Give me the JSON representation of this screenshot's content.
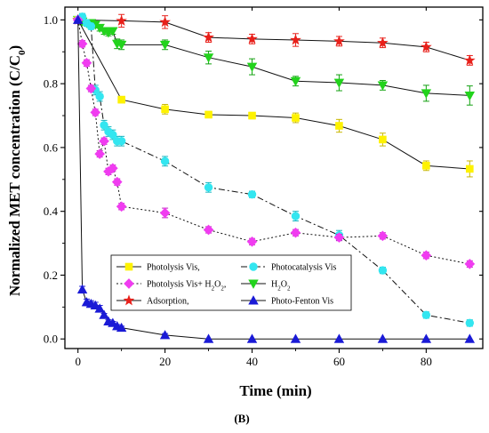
{
  "chart_data": {
    "type": "line",
    "xlabel": "Time (min)",
    "ylabel_parts": {
      "main": "Normalized MET concentration (C/C",
      "sub": "0",
      "end": ")"
    },
    "panel_label": "(B)",
    "xlim": [
      -3,
      93
    ],
    "ylim": [
      -0.03,
      1.04
    ],
    "xticks": [
      0,
      20,
      40,
      60,
      80
    ],
    "yticks": [
      0.0,
      0.2,
      0.4,
      0.6,
      0.8,
      1.0
    ],
    "ytick_labels": [
      "0.0",
      "0.2",
      "0.4",
      "0.6",
      "0.8",
      "1.0"
    ],
    "grid": false,
    "legend_position": "lower-center",
    "series": [
      {
        "name": "Adsorption,",
        "color": "#e8201a",
        "marker": "star",
        "line": "solid",
        "x": [
          0,
          10,
          20,
          30,
          40,
          50,
          60,
          70,
          80,
          90
        ],
        "y": [
          1.0,
          0.997,
          0.993,
          0.945,
          0.94,
          0.937,
          0.933,
          0.928,
          0.915,
          0.873
        ],
        "err": [
          0,
          0.02,
          0.02,
          0.015,
          0.015,
          0.02,
          0.015,
          0.015,
          0.015,
          0.015
        ]
      },
      {
        "name": "H",
        "name_sub": "2",
        "name_rest": "O",
        "name_sub2": "2",
        "color": "#22d31c",
        "marker": "triangle-down",
        "line": "solid",
        "x": [
          0,
          1,
          2,
          3,
          4,
          5,
          6,
          7,
          8,
          9,
          10,
          20,
          30,
          40,
          50,
          60,
          70,
          80,
          90
        ],
        "y": [
          1.0,
          0.995,
          0.99,
          0.99,
          0.985,
          0.975,
          0.965,
          0.96,
          0.965,
          0.925,
          0.922,
          0.922,
          0.882,
          0.853,
          0.808,
          0.803,
          0.795,
          0.77,
          0.763
        ],
        "err": [
          0,
          0.01,
          0.01,
          0.01,
          0.01,
          0.01,
          0.01,
          0.01,
          0.01,
          0.015,
          0.015,
          0.015,
          0.02,
          0.025,
          0.015,
          0.025,
          0.015,
          0.025,
          0.03
        ]
      },
      {
        "name": "Photolysis Vis,",
        "color": "#fef200",
        "marker": "square",
        "line": "solid",
        "x": [
          0,
          10,
          20,
          30,
          40,
          50,
          60,
          70,
          80,
          90
        ],
        "y": [
          1.0,
          0.75,
          0.72,
          0.703,
          0.7,
          0.693,
          0.668,
          0.625,
          0.543,
          0.533
        ],
        "err": [
          0,
          0.01,
          0.015,
          0.01,
          0.01,
          0.015,
          0.02,
          0.02,
          0.015,
          0.025
        ]
      },
      {
        "name": "Photocatalysis Vis",
        "color": "#33e6f0",
        "marker": "circle",
        "line": "dash-dot",
        "x": [
          0,
          1,
          2,
          3,
          4,
          5,
          6,
          7,
          8,
          9,
          10,
          20,
          30,
          40,
          50,
          60,
          70,
          80,
          90
        ],
        "y": [
          1.0,
          1.01,
          0.99,
          0.98,
          0.78,
          0.76,
          0.67,
          0.65,
          0.64,
          0.62,
          0.62,
          0.557,
          0.475,
          0.453,
          0.385,
          0.325,
          0.215,
          0.075,
          0.05
        ],
        "err": [
          0,
          0.01,
          0.01,
          0.01,
          0.015,
          0.015,
          0.015,
          0.015,
          0.015,
          0.015,
          0.015,
          0.015,
          0.015,
          0.01,
          0.015,
          0.015,
          0.01,
          0.01,
          0.01
        ]
      },
      {
        "name": "Photolysis Vis+ H",
        "name_sub": "2",
        "name_rest": "O",
        "name_sub2": "2",
        "name_end": ",",
        "color": "#f03cf0",
        "marker": "diamond",
        "line": "dotted",
        "x": [
          0,
          1,
          2,
          3,
          4,
          5,
          6,
          7,
          8,
          9,
          10,
          20,
          30,
          40,
          50,
          60,
          70,
          80,
          90
        ],
        "y": [
          1.0,
          0.925,
          0.865,
          0.785,
          0.71,
          0.58,
          0.62,
          0.525,
          0.535,
          0.492,
          0.415,
          0.395,
          0.342,
          0.305,
          0.333,
          0.318,
          0.323,
          0.262,
          0.235
        ],
        "err": [
          0,
          0.01,
          0.01,
          0.01,
          0.01,
          0.01,
          0.01,
          0.01,
          0.01,
          0.01,
          0.01,
          0.015,
          0.01,
          0.01,
          0.01,
          0.01,
          0.01,
          0.01,
          0.01
        ]
      },
      {
        "name": "Photo-Fenton Vis",
        "color": "#1a1ad6",
        "marker": "triangle-up",
        "line": "solid",
        "x": [
          0,
          1,
          2,
          3,
          4,
          5,
          6,
          7,
          8,
          9,
          10,
          20,
          30,
          40,
          50,
          60,
          70,
          80,
          90
        ],
        "y": [
          1.0,
          0.155,
          0.115,
          0.11,
          0.105,
          0.095,
          0.075,
          0.055,
          0.05,
          0.04,
          0.035,
          0.012,
          0.0,
          0.0,
          0.0,
          0.0,
          0.0,
          0.0,
          0.0
        ],
        "err": [
          0,
          0.01,
          0.01,
          0.01,
          0.01,
          0.01,
          0.005,
          0.005,
          0.005,
          0.005,
          0.005,
          0.005,
          0,
          0,
          0,
          0,
          0,
          0,
          0
        ]
      }
    ],
    "legend_rows": [
      [
        2,
        3
      ],
      [
        4,
        1
      ],
      [
        0,
        5
      ]
    ]
  }
}
